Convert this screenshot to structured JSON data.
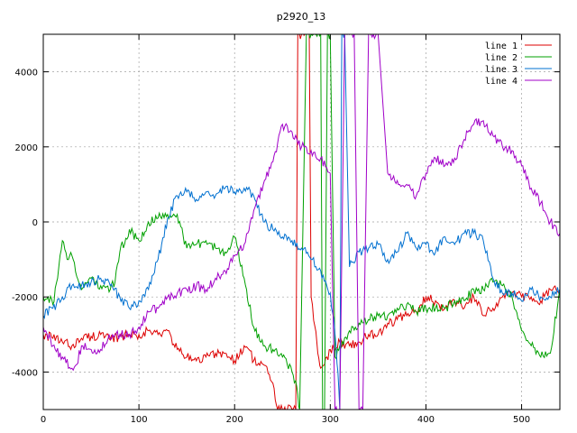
{
  "chart_data": {
    "type": "line",
    "title": "p2920_13",
    "xlabel": "",
    "ylabel": "",
    "xlim": [
      0,
      540
    ],
    "ylim": [
      -5000,
      5000
    ],
    "x_ticks": [
      0,
      100,
      200,
      300,
      400,
      500
    ],
    "y_ticks": [
      -4000,
      -2000,
      0,
      2000,
      4000
    ],
    "x_tick_labels": [
      "0",
      "100",
      "200",
      "300",
      "400",
      "500"
    ],
    "y_tick_labels": [
      "-4000",
      "-2000",
      "0",
      "2000",
      "4000"
    ],
    "grid": true,
    "legend_position": "top-right",
    "series": [
      {
        "name": "line 1",
        "color": "#dd0000",
        "x": [
          0,
          10,
          20,
          30,
          40,
          50,
          60,
          70,
          80,
          90,
          100,
          110,
          120,
          130,
          140,
          150,
          160,
          170,
          180,
          190,
          200,
          210,
          215,
          220,
          230,
          240,
          245,
          250,
          255,
          260,
          264,
          266,
          270,
          275,
          278,
          280,
          284,
          287,
          290,
          294,
          300,
          310,
          320,
          330,
          340,
          350,
          360,
          370,
          380,
          390,
          400,
          410,
          420,
          430,
          440,
          450,
          460,
          470,
          480,
          490,
          500,
          510,
          520,
          530,
          540
        ],
        "y": [
          -3000,
          -3100,
          -3200,
          -3300,
          -3100,
          -3050,
          -3000,
          -3150,
          -3050,
          -3000,
          -3000,
          -2900,
          -3000,
          -2900,
          -3400,
          -3600,
          -3700,
          -3600,
          -3500,
          -3500,
          -3700,
          -3300,
          -3400,
          -3700,
          -3800,
          -4300,
          -5000,
          -5000,
          -5000,
          -5000,
          -5000,
          5000,
          5000,
          5000,
          5000,
          -2000,
          -2800,
          -3500,
          -3900,
          -3800,
          -3400,
          -3200,
          -3300,
          -3200,
          -3000,
          -3000,
          -2700,
          -2600,
          -2500,
          -2400,
          -2000,
          -2100,
          -2300,
          -2100,
          -2300,
          -2000,
          -2500,
          -2300,
          -2000,
          -1900,
          -2000,
          -2000,
          -2100,
          -1800,
          -1800
        ]
      },
      {
        "name": "line 2",
        "color": "#00a000",
        "x": [
          0,
          5,
          10,
          15,
          20,
          25,
          30,
          40,
          50,
          60,
          70,
          75,
          80,
          90,
          100,
          110,
          120,
          130,
          140,
          150,
          160,
          170,
          180,
          190,
          200,
          210,
          220,
          230,
          240,
          250,
          260,
          265,
          268,
          275,
          280,
          285,
          290,
          292,
          294,
          297,
          300,
          305,
          310,
          320,
          330,
          340,
          350,
          360,
          370,
          380,
          390,
          400,
          410,
          420,
          430,
          440,
          450,
          460,
          470,
          480,
          490,
          500,
          510,
          520,
          530,
          540
        ],
        "y": [
          -2000,
          -2000,
          -2200,
          -1500,
          -500,
          -1000,
          -900,
          -1800,
          -1500,
          -1700,
          -1800,
          -1600,
          -800,
          -200,
          -500,
          0,
          100,
          200,
          200,
          -700,
          -600,
          -500,
          -700,
          -800,
          -400,
          -1500,
          -2800,
          -3300,
          -3400,
          -3600,
          -4000,
          -4400,
          -5000,
          5000,
          5000,
          5000,
          5000,
          -5000,
          -5000,
          5000,
          5000,
          -3600,
          -3300,
          -2900,
          -2700,
          -2600,
          -2500,
          -2500,
          -2300,
          -2200,
          -2400,
          -2300,
          -2300,
          -2300,
          -2100,
          -2100,
          -1800,
          -1800,
          -1600,
          -1700,
          -2000,
          -2900,
          -3300,
          -3600,
          -3500,
          -1800
        ]
      },
      {
        "name": "line 3",
        "color": "#0070d0",
        "x": [
          0,
          10,
          20,
          30,
          40,
          50,
          60,
          70,
          80,
          90,
          100,
          110,
          120,
          130,
          140,
          150,
          160,
          170,
          180,
          190,
          200,
          210,
          220,
          230,
          240,
          250,
          260,
          270,
          280,
          290,
          300,
          305,
          308,
          310,
          312,
          315,
          320,
          330,
          340,
          350,
          360,
          370,
          380,
          390,
          400,
          410,
          420,
          430,
          440,
          450,
          460,
          470,
          480,
          490,
          500,
          510,
          520,
          530,
          540
        ],
        "y": [
          -2500,
          -2300,
          -2000,
          -1700,
          -1700,
          -1600,
          -1500,
          -1700,
          -2000,
          -2300,
          -2100,
          -1800,
          -1000,
          100,
          700,
          800,
          600,
          800,
          700,
          900,
          800,
          900,
          700,
          0,
          -200,
          -400,
          -500,
          -700,
          -1000,
          -1300,
          -1900,
          -3000,
          -4000,
          -5000,
          5000,
          5000,
          -1200,
          -800,
          -700,
          -600,
          -1000,
          -800,
          -300,
          -700,
          -600,
          -800,
          -400,
          -600,
          -300,
          -300,
          -500,
          -1500,
          -1900,
          -1900,
          -2100,
          -1800,
          -2000,
          -2000,
          -1800
        ]
      },
      {
        "name": "line 4",
        "color": "#a000c8",
        "x": [
          0,
          10,
          20,
          30,
          35,
          40,
          50,
          60,
          70,
          80,
          90,
          100,
          110,
          120,
          130,
          140,
          150,
          160,
          170,
          180,
          190,
          200,
          210,
          220,
          230,
          240,
          250,
          260,
          270,
          280,
          290,
          300,
          305,
          310,
          315,
          320,
          325,
          330,
          334,
          340,
          345,
          350,
          360,
          370,
          380,
          390,
          400,
          410,
          420,
          430,
          440,
          450,
          460,
          470,
          480,
          490,
          500,
          510,
          520,
          530,
          540
        ],
        "y": [
          -2800,
          -3300,
          -3600,
          -3900,
          -3800,
          -3300,
          -3400,
          -3400,
          -3100,
          -3000,
          -3000,
          -2800,
          -2400,
          -2300,
          -2000,
          -1900,
          -1800,
          -1700,
          -1800,
          -1500,
          -1300,
          -900,
          -600,
          300,
          1000,
          1600,
          2600,
          2400,
          2000,
          1900,
          1700,
          1300,
          -5000,
          -5000,
          5000,
          5000,
          5000,
          -5000,
          -5000,
          5000,
          5000,
          5000,
          1300,
          1100,
          1000,
          700,
          1300,
          1700,
          1500,
          1700,
          2200,
          2600,
          2700,
          2300,
          2000,
          1900,
          1500,
          900,
          500,
          0,
          -300
        ]
      }
    ]
  }
}
